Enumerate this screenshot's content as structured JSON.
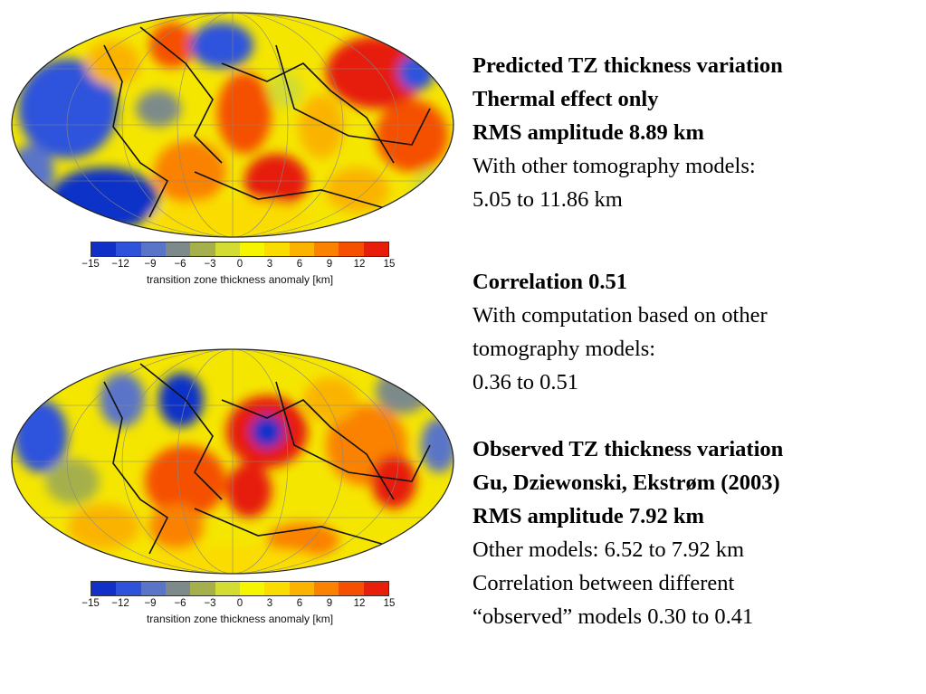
{
  "colorbar": {
    "colors": [
      "#1030c8",
      "#2e52dc",
      "#5a74c8",
      "#7d8a8a",
      "#a5b04c",
      "#d2dc32",
      "#f5f500",
      "#fadc00",
      "#fab400",
      "#fa8200",
      "#f55000",
      "#e61e0a"
    ],
    "tick_labels": [
      "−15",
      "−12",
      "−9",
      "−6",
      "−3",
      "0",
      "3",
      "6",
      "9",
      "12",
      "15"
    ],
    "axis_label": "transition zone thickness anomaly [km]"
  },
  "maps": {
    "top": {
      "legend_color": "predicted"
    },
    "bottom": {
      "legend_color": "observed"
    }
  },
  "text": {
    "block1": {
      "line1": "Predicted TZ thickness variation",
      "line2": "Thermal effect only",
      "line3": "RMS amplitude 8.89 km",
      "line4": "With other tomography models:",
      "line5": "5.05 to 11.86 km"
    },
    "block2": {
      "line1": "Correlation 0.51",
      "line2": "With computation based on other",
      "line3": "tomography models:",
      "line4": "0.36 to 0.51"
    },
    "block3": {
      "line1": "Observed TZ thickness variation",
      "line2": "Gu, Dziewonski, Ekstrøm (2003)",
      "line3": "RMS amplitude 7.92 km",
      "line4": "Other models: 6.52 to 7.92 km",
      "line5": "Correlation between different",
      "line6": "“observed” models 0.30 to 0.41"
    }
  }
}
